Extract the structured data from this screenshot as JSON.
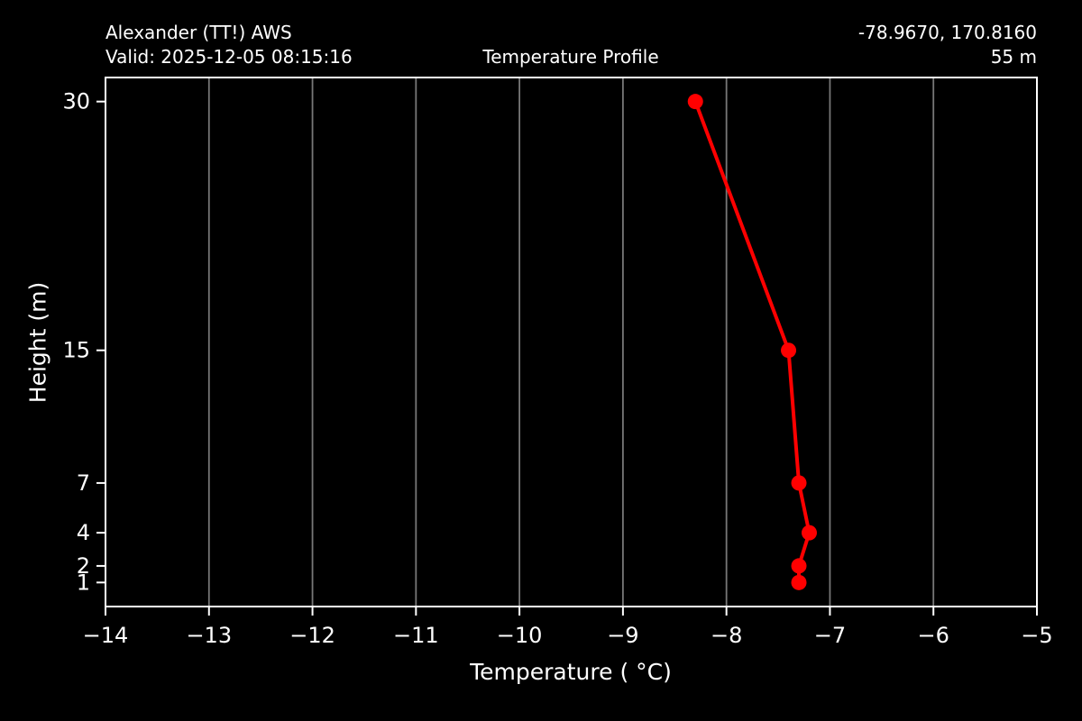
{
  "colors": {
    "background": "#000000",
    "text": "#ffffff",
    "spine": "#ffffff",
    "grid": "#777777",
    "line": "#ff0000",
    "marker": "#ff0000"
  },
  "header": {
    "station_name": "Alexander (TT!) AWS",
    "valid_line": "Valid: 2025-12-05 08:15:16",
    "plot_title": "Temperature Profile",
    "coordinates": "-78.9670, 170.8160",
    "elevation": "55 m"
  },
  "chart_data": {
    "type": "line",
    "title": "Temperature Profile",
    "xlabel": "Temperature ( °C)",
    "ylabel": "Height (m)",
    "series": [
      {
        "name": "temperature-profile",
        "points": [
          {
            "temperature_c": -7.3,
            "height_m": 1
          },
          {
            "temperature_c": -7.3,
            "height_m": 2
          },
          {
            "temperature_c": -7.2,
            "height_m": 4
          },
          {
            "temperature_c": -7.3,
            "height_m": 7
          },
          {
            "temperature_c": -7.4,
            "height_m": 15
          },
          {
            "temperature_c": -8.3,
            "height_m": 30
          }
        ]
      }
    ],
    "xlim": [
      -14,
      -5
    ],
    "ylim": [
      -0.45,
      31.45
    ],
    "xticks": [
      -14,
      -13,
      -12,
      -11,
      -10,
      -9,
      -8,
      -7,
      -6,
      -5
    ],
    "xtick_labels": [
      "−14",
      "−13",
      "−12",
      "−11",
      "−10",
      "−9",
      "−8",
      "−7",
      "−6",
      "−5"
    ],
    "yticks": [
      1,
      2,
      4,
      7,
      15,
      30
    ],
    "ytick_labels": [
      "1",
      "2",
      "4",
      "7",
      "15",
      "30"
    ],
    "grid": "vertical-only",
    "legend": "none",
    "line_color": "#ff0000",
    "marker": "circle"
  }
}
